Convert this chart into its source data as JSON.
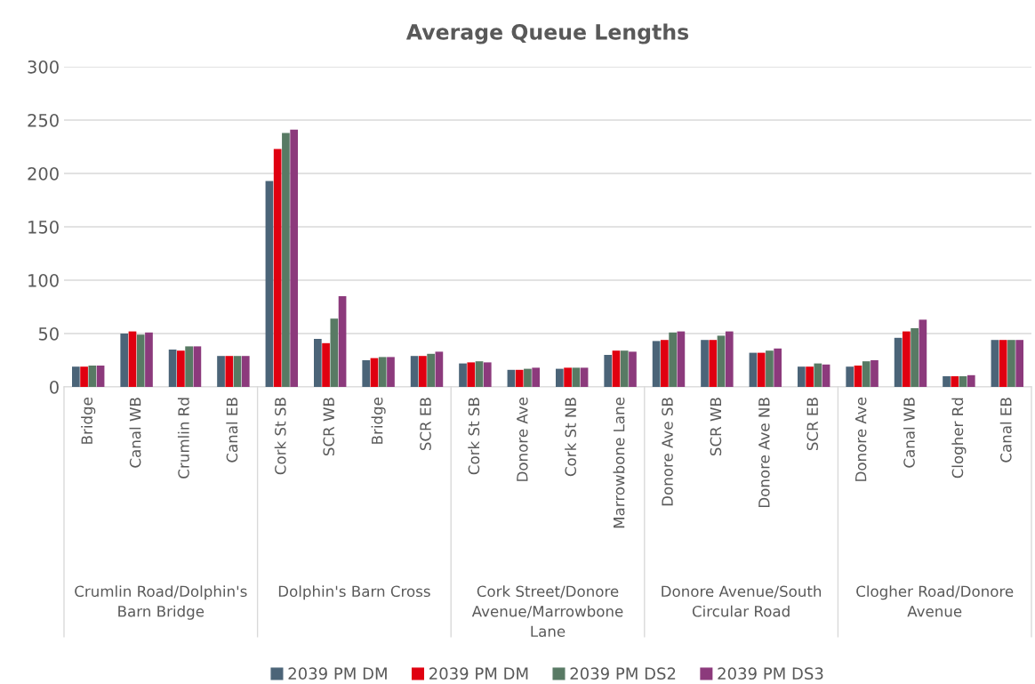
{
  "chart_data": {
    "type": "bar",
    "title": "Average Queue Lengths",
    "categories": [
      "Bridge",
      "Canal WB",
      "Crumlin Rd",
      "Canal EB",
      "Cork St SB",
      "SCR WB",
      "Bridge",
      "SCR EB",
      "Cork St SB",
      "Donore Ave",
      "Cork St NB",
      "Marrowbone Lane",
      "Donore Ave SB",
      "SCR WB",
      "Donore Ave NB",
      "SCR EB",
      "Donore Ave",
      "Canal WB",
      "Clogher Rd",
      "Canal EB"
    ],
    "series": [
      {
        "name": "2039 PM DM",
        "color": "#4b6478",
        "values": [
          19,
          50,
          35,
          29,
          193,
          45,
          25,
          29,
          22,
          16,
          17,
          30,
          43,
          44,
          32,
          19,
          19,
          46,
          10,
          44
        ]
      },
      {
        "name": "2039 PM DM",
        "color": "#e00010",
        "values": [
          19,
          52,
          34,
          29,
          223,
          41,
          27,
          29,
          23,
          16,
          18,
          34,
          44,
          44,
          32,
          19,
          20,
          52,
          10,
          44
        ]
      },
      {
        "name": "2039 PM DS2",
        "color": "#587a64",
        "values": [
          20,
          49,
          38,
          29,
          238,
          64,
          28,
          31,
          24,
          17,
          18,
          34,
          51,
          48,
          34,
          22,
          24,
          55,
          10,
          44
        ]
      },
      {
        "name": "2039 PM DS3",
        "color": "#8c3a7c",
        "values": [
          20,
          51,
          38,
          29,
          241,
          85,
          28,
          33,
          23,
          18,
          18,
          33,
          52,
          52,
          36,
          21,
          25,
          63,
          11,
          44
        ]
      }
    ],
    "annotations": [
      "Crumlin Road/Dolphin's Barn Bridge",
      "Dolphin's Barn Cross",
      "Cork Street/Donore Avenue/Marrowbone Lane",
      "Donore Avenue/South Circular Road",
      "Clogher Road/Donore Avenue"
    ],
    "ylim": [
      0,
      300
    ],
    "yticks": [
      0,
      50,
      100,
      150,
      200,
      250,
      300
    ],
    "grid": "y",
    "legend": "bottom"
  }
}
